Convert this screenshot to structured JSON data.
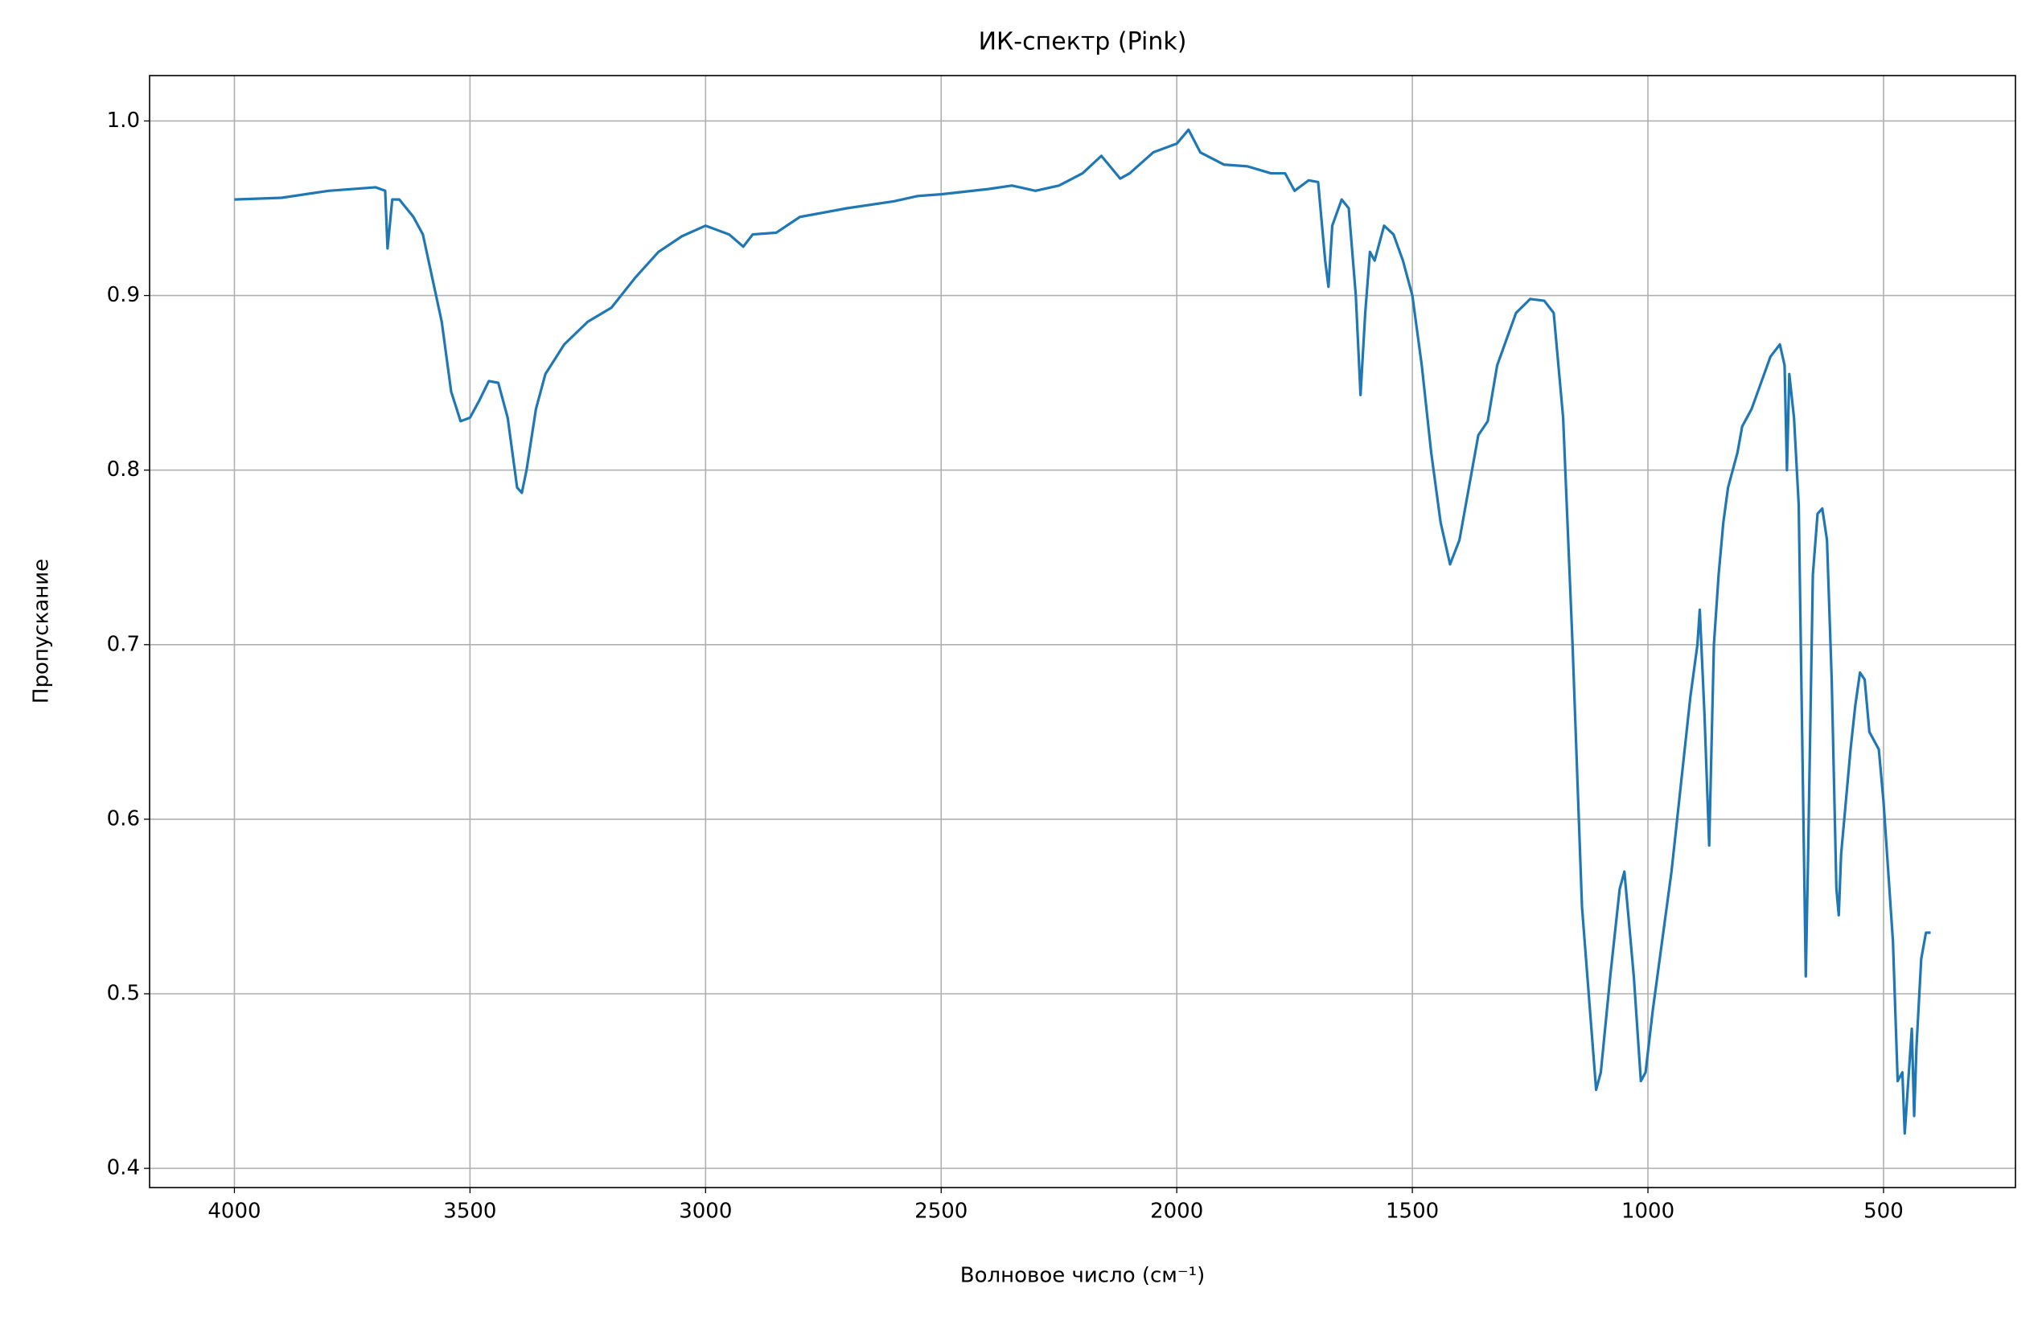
{
  "chart_data": {
    "type": "line",
    "title": "ИК-спектр (Pink)",
    "x_label": "Волновое число (см⁻¹)",
    "y_label": "Пропускание",
    "xlim": [
      4180,
      220
    ],
    "ylim": [
      0.389,
      1.026
    ],
    "xticks": [
      4000,
      3500,
      3000,
      2500,
      2000,
      1500,
      1000,
      500
    ],
    "yticks": [
      0.4,
      0.5,
      0.6,
      0.7,
      0.8,
      0.9,
      {
        "value": 1.0,
        "label": "1.0"
      }
    ],
    "grid": true,
    "series": [
      {
        "name": "Pink",
        "color": "#1f77b4",
        "x": [
          4000,
          3900,
          3800,
          3700,
          3680,
          3675,
          3665,
          3650,
          3620,
          3600,
          3580,
          3560,
          3540,
          3520,
          3500,
          3480,
          3460,
          3440,
          3420,
          3400,
          3390,
          3380,
          3360,
          3340,
          3300,
          3250,
          3200,
          3150,
          3100,
          3050,
          3000,
          2950,
          2920,
          2900,
          2850,
          2800,
          2700,
          2600,
          2550,
          2500,
          2400,
          2350,
          2300,
          2250,
          2200,
          2160,
          2120,
          2100,
          2050,
          2000,
          1975,
          1950,
          1900,
          1850,
          1800,
          1770,
          1750,
          1720,
          1700,
          1685,
          1678,
          1670,
          1650,
          1635,
          1620,
          1610,
          1600,
          1590,
          1580,
          1560,
          1540,
          1520,
          1500,
          1480,
          1460,
          1440,
          1420,
          1400,
          1380,
          1360,
          1340,
          1320,
          1300,
          1280,
          1250,
          1220,
          1200,
          1180,
          1160,
          1140,
          1120,
          1110,
          1100,
          1080,
          1060,
          1050,
          1040,
          1030,
          1015,
          1005,
          990,
          970,
          950,
          930,
          910,
          895,
          890,
          880,
          870,
          860,
          850,
          840,
          830,
          810,
          800,
          780,
          760,
          740,
          720,
          710,
          705,
          700,
          690,
          680,
          670,
          665,
          660,
          650,
          640,
          630,
          620,
          610,
          600,
          595,
          590,
          580,
          570,
          560,
          550,
          540,
          530,
          520,
          510,
          500,
          490,
          480,
          470,
          460,
          455,
          450,
          440,
          435,
          430,
          420,
          410,
          400
        ],
        "values": [
          0.955,
          0.956,
          0.96,
          0.962,
          0.96,
          0.927,
          0.955,
          0.955,
          0.945,
          0.935,
          0.91,
          0.885,
          0.845,
          0.828,
          0.83,
          0.84,
          0.851,
          0.85,
          0.83,
          0.79,
          0.787,
          0.8,
          0.835,
          0.855,
          0.872,
          0.885,
          0.893,
          0.91,
          0.925,
          0.934,
          0.94,
          0.935,
          0.928,
          0.935,
          0.936,
          0.945,
          0.95,
          0.954,
          0.957,
          0.958,
          0.961,
          0.963,
          0.96,
          0.963,
          0.97,
          0.98,
          0.967,
          0.97,
          0.982,
          0.987,
          0.995,
          0.982,
          0.975,
          0.974,
          0.97,
          0.97,
          0.96,
          0.966,
          0.965,
          0.92,
          0.905,
          0.94,
          0.955,
          0.95,
          0.9,
          0.843,
          0.89,
          0.925,
          0.92,
          0.94,
          0.935,
          0.92,
          0.9,
          0.86,
          0.81,
          0.77,
          0.746,
          0.76,
          0.79,
          0.82,
          0.828,
          0.86,
          0.875,
          0.89,
          0.898,
          0.897,
          0.89,
          0.83,
          0.7,
          0.55,
          0.48,
          0.445,
          0.455,
          0.51,
          0.56,
          0.57,
          0.54,
          0.51,
          0.45,
          0.455,
          0.49,
          0.53,
          0.57,
          0.62,
          0.67,
          0.7,
          0.72,
          0.66,
          0.585,
          0.7,
          0.74,
          0.77,
          0.79,
          0.81,
          0.825,
          0.835,
          0.85,
          0.865,
          0.872,
          0.86,
          0.8,
          0.855,
          0.83,
          0.78,
          0.6,
          0.51,
          0.58,
          0.74,
          0.775,
          0.778,
          0.76,
          0.68,
          0.56,
          0.545,
          0.58,
          0.61,
          0.64,
          0.665,
          0.684,
          0.68,
          0.65,
          0.645,
          0.64,
          0.61,
          0.57,
          0.53,
          0.45,
          0.455,
          0.42,
          0.44,
          0.48,
          0.43,
          0.47,
          0.52,
          0.535,
          0.535
        ]
      }
    ]
  }
}
